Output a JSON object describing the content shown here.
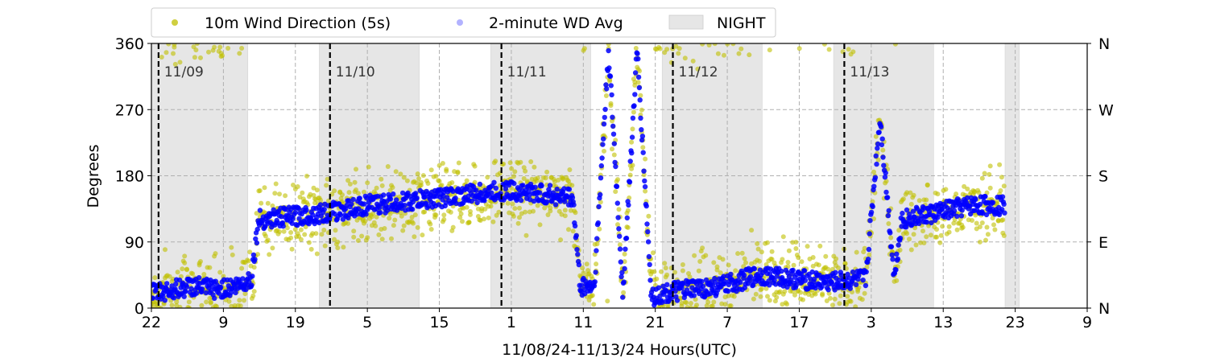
{
  "chart_data": {
    "type": "scatter",
    "title": "",
    "xlabel": "11/08/24-11/13/24  Hours(UTC)",
    "ylabel": "Degrees",
    "ylim": [
      0,
      360
    ],
    "xlim_hours": [
      0,
      131
    ],
    "grid": true,
    "yticks": [
      0,
      90,
      180,
      270,
      360
    ],
    "ytick_labels": [
      "0",
      "90",
      "180",
      "270",
      "360"
    ],
    "y2_tick_labels": [
      "N",
      "E",
      "S",
      "W",
      "N"
    ],
    "xtick_labels": [
      "22",
      "9",
      "19",
      "5",
      "15",
      "1",
      "11",
      "21",
      "7",
      "17",
      "3",
      "13",
      "23",
      "9"
    ],
    "legend": {
      "placement": "top-left",
      "entries": [
        "10m Wind Direction (5s)",
        "2-minute WD Avg",
        "NIGHT"
      ]
    },
    "series": [
      {
        "name": "10m Wind Direction (5s)",
        "color": "#bfbf00"
      },
      {
        "name": "2-minute WD Avg",
        "color": "#0000ff"
      }
    ],
    "night_periods_hours": [
      [
        0,
        13.5
      ],
      [
        23.5,
        37.5
      ],
      [
        47.5,
        61.5
      ],
      [
        71.5,
        85.5
      ],
      [
        95.5,
        109.5
      ],
      [
        119.5,
        121.5
      ]
    ],
    "day_markers": [
      {
        "label": "11/09",
        "hour": 1
      },
      {
        "label": "11/10",
        "hour": 25
      },
      {
        "label": "11/11",
        "hour": 49
      },
      {
        "label": "11/12",
        "hour": 73
      },
      {
        "label": "11/13",
        "hour": 97
      }
    ],
    "avg_trend": {
      "hours": [
        0,
        3,
        6,
        9,
        12,
        14,
        15,
        20,
        25,
        30,
        36,
        40,
        45,
        50,
        55,
        59,
        60,
        62,
        64,
        66,
        68,
        70,
        72,
        75,
        80,
        85,
        90,
        95,
        100,
        102,
        104,
        105,
        110,
        115,
        119.5
      ],
      "values": [
        20,
        25,
        30,
        25,
        30,
        40,
        120,
        125,
        130,
        140,
        145,
        150,
        155,
        160,
        155,
        150,
        30,
        30,
        350,
        20,
        350,
        15,
        20,
        25,
        30,
        45,
        40,
        35,
        40,
        260,
        40,
        120,
        130,
        140,
        140
      ]
    }
  },
  "colors": {
    "raw": "#bfbf00",
    "avg": "#0000ff",
    "night": "#e6e6e6",
    "grid": "#b0b0b0"
  }
}
